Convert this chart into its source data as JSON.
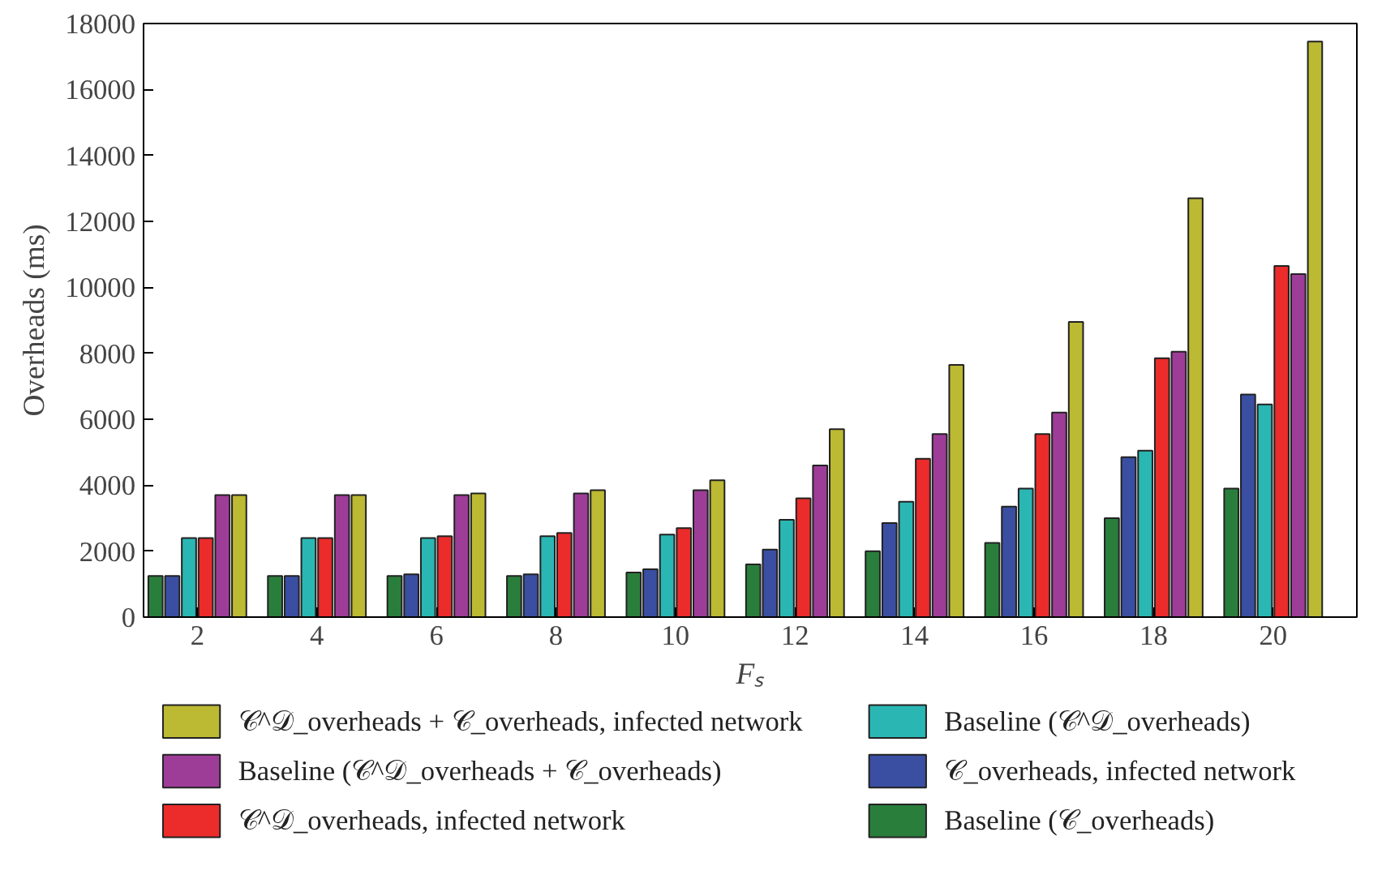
{
  "chart_data": {
    "type": "bar",
    "xlabel": "Fₛ",
    "ylabel": "Overheads (ms)",
    "x": [
      2,
      4,
      6,
      8,
      10,
      12,
      14,
      16,
      18,
      20
    ],
    "series": [
      {
        "name": "Baseline (𝒞_overheads)",
        "color": "#2a7e3c",
        "values": [
          1250,
          1250,
          1250,
          1250,
          1350,
          1600,
          2000,
          2250,
          3000,
          3900
        ]
      },
      {
        "name": "𝒞_overheads, infected network",
        "color": "#3a4fa2",
        "values": [
          1250,
          1250,
          1300,
          1300,
          1450,
          2050,
          2850,
          3350,
          4850,
          6750
        ]
      },
      {
        "name": "Baseline (𝒞^𝒟_overheads)",
        "color": "#2ab7b4",
        "values": [
          2400,
          2400,
          2400,
          2450,
          2500,
          2950,
          3500,
          3900,
          5050,
          6450
        ]
      },
      {
        "name": "𝒞^𝒟_overheads, infected network",
        "color": "#ec2b2b",
        "values": [
          2400,
          2400,
          2450,
          2550,
          2700,
          3600,
          4800,
          5550,
          7850,
          10650
        ]
      },
      {
        "name": "Baseline (𝒞^𝒟_overheads + 𝒞_overheads)",
        "color": "#9e3d98",
        "values": [
          3700,
          3700,
          3700,
          3750,
          3850,
          4600,
          5550,
          6200,
          8050,
          10400
        ]
      },
      {
        "name": "𝒞^𝒟_overheads + 𝒞_overheads, infected network",
        "color": "#bcb933",
        "values": [
          3700,
          3700,
          3750,
          3850,
          4150,
          5700,
          7650,
          8950,
          12700,
          17450
        ]
      }
    ],
    "xlim": [
      1.1,
      21.4
    ],
    "xticks": [
      2,
      4,
      6,
      8,
      10,
      12,
      14,
      16,
      18,
      20
    ],
    "ylim": [
      0,
      18000
    ],
    "yticks": [
      0,
      2000,
      4000,
      6000,
      8000,
      10000,
      12000,
      14000,
      16000,
      18000
    ],
    "grid": false,
    "legend": "bottom"
  }
}
